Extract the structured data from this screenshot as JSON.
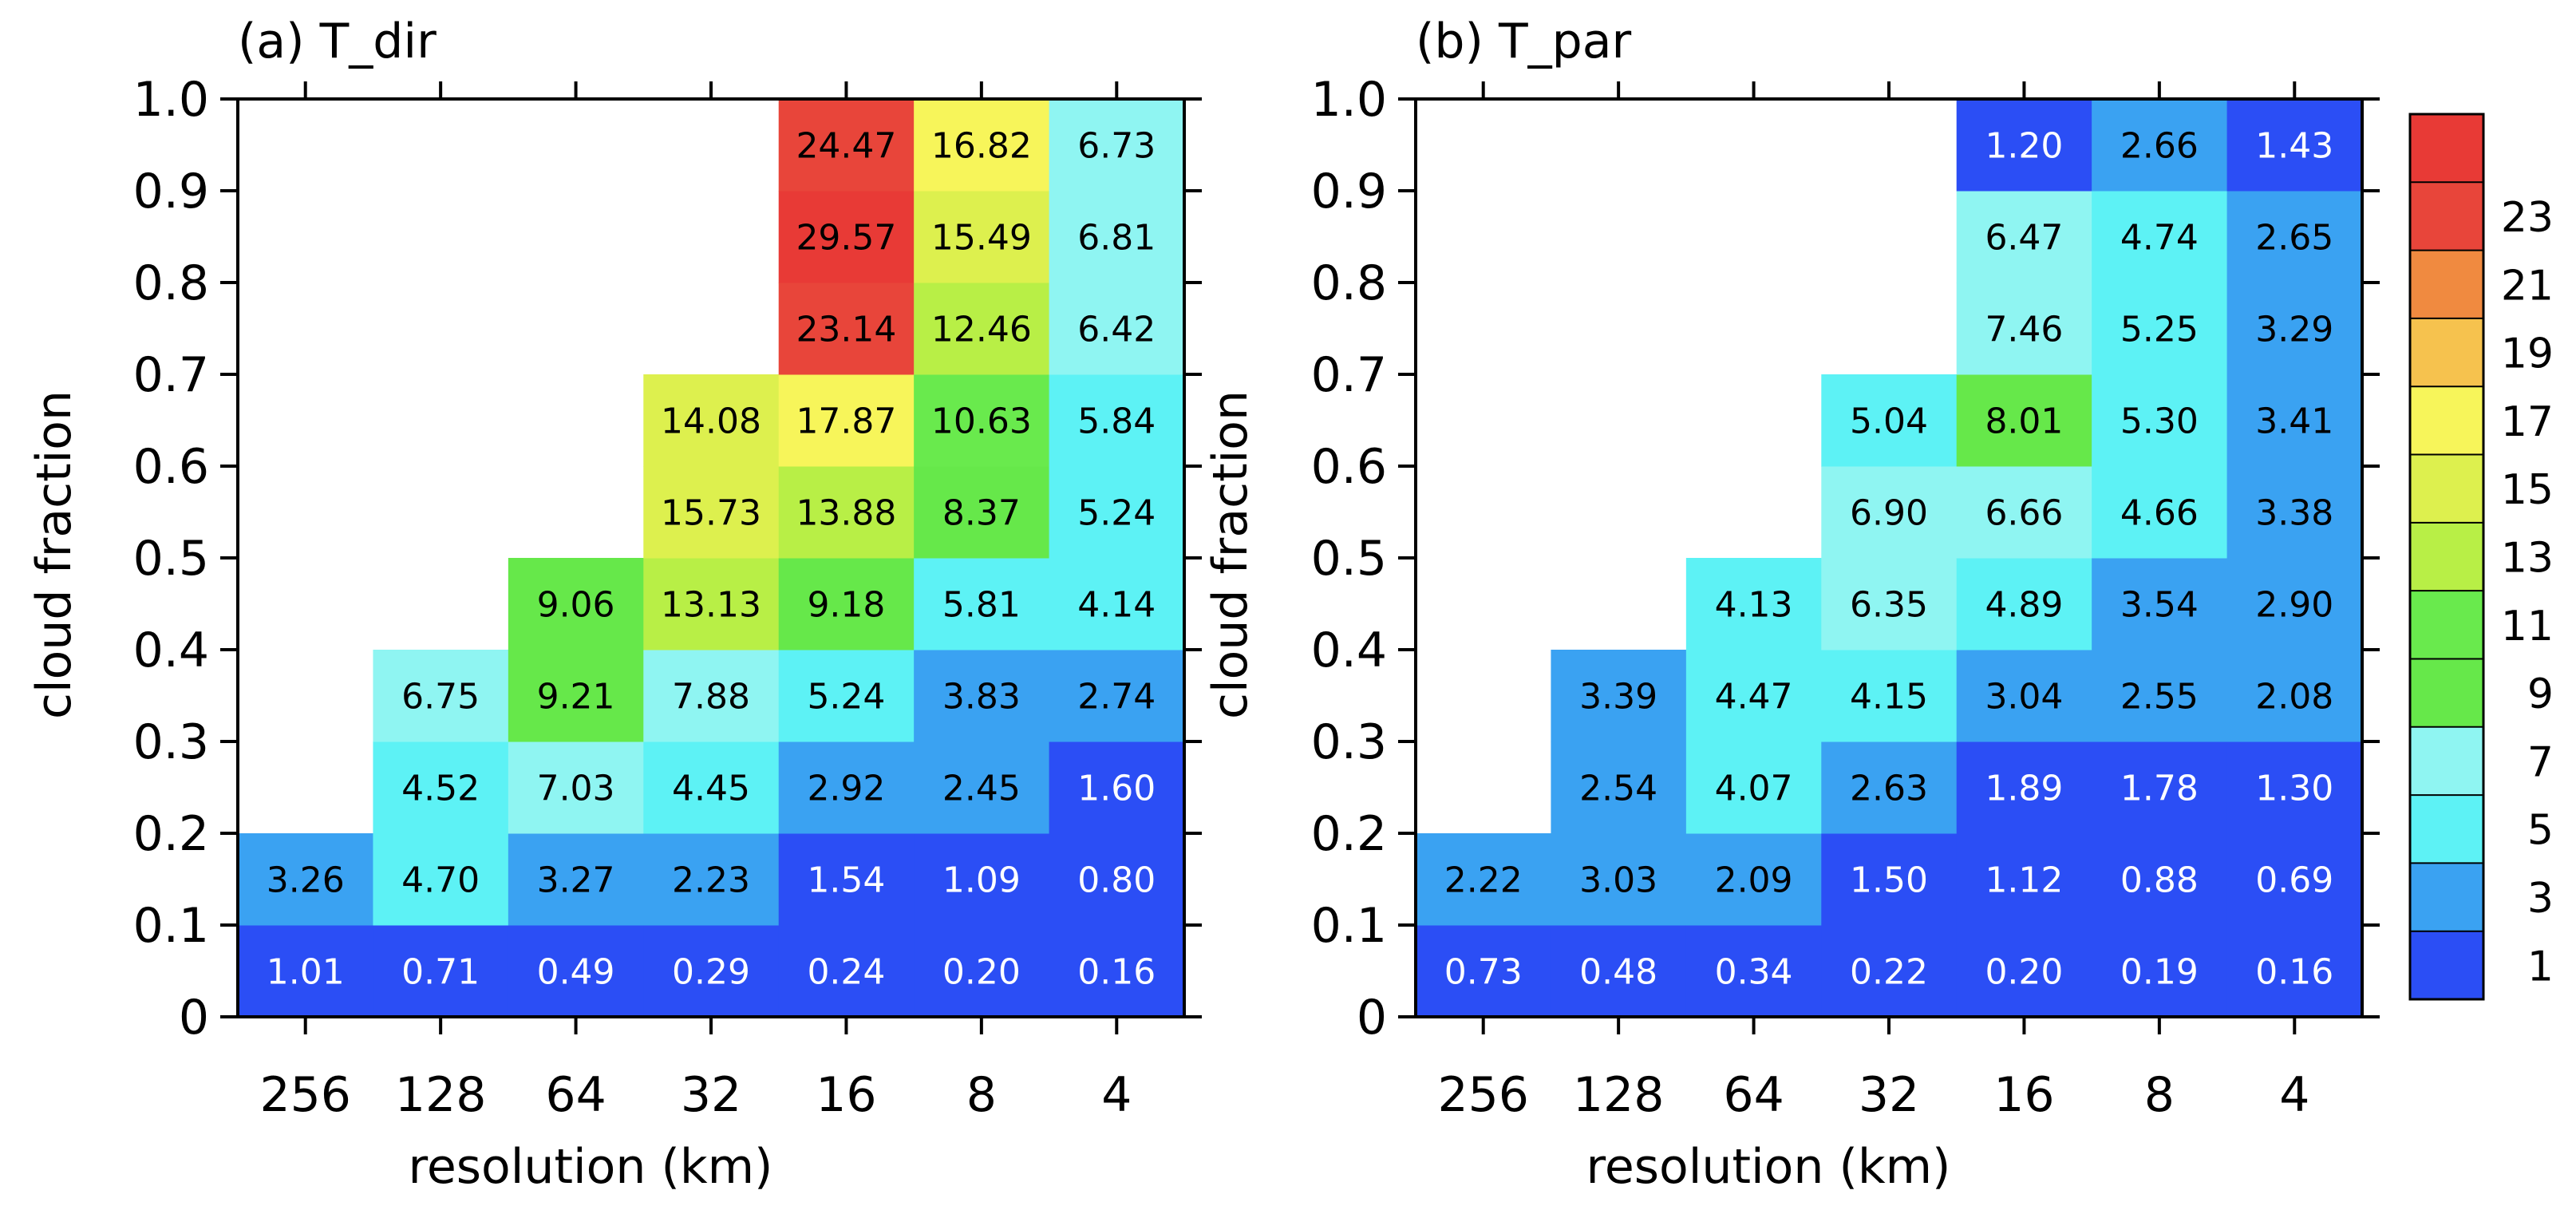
{
  "chart_data": [
    {
      "type": "heatmap",
      "panel": "a",
      "title": "(a) T_dir",
      "xlabel": "resolution (km)",
      "ylabel": "cloud fraction",
      "x_categories": [
        "256",
        "128",
        "64",
        "32",
        "16",
        "8",
        "4"
      ],
      "y_ticks": [
        "0",
        "0.1",
        "0.2",
        "0.3",
        "0.4",
        "0.5",
        "0.6",
        "0.7",
        "0.8",
        "0.9",
        "1.0"
      ],
      "ylim": [
        0,
        1.0
      ],
      "values": [
        [
          "1.01",
          "0.71",
          "0.49",
          "0.29",
          "0.24",
          "0.20",
          "0.16"
        ],
        [
          "3.26",
          "4.70",
          "3.27",
          "2.23",
          "1.54",
          "1.09",
          "0.80"
        ],
        [
          null,
          "4.52",
          "7.03",
          "4.45",
          "2.92",
          "2.45",
          "1.60"
        ],
        [
          null,
          "6.75",
          "9.21",
          "7.88",
          "5.24",
          "3.83",
          "2.74"
        ],
        [
          null,
          null,
          "9.06",
          "13.13",
          "9.18",
          "5.81",
          "4.14"
        ],
        [
          null,
          null,
          null,
          "15.73",
          "13.88",
          "8.37",
          "5.24"
        ],
        [
          null,
          null,
          null,
          "14.08",
          "17.87",
          "10.63",
          "5.84"
        ],
        [
          null,
          null,
          null,
          null,
          "23.14",
          "12.46",
          "6.42"
        ],
        [
          null,
          null,
          null,
          null,
          "29.57",
          "15.49",
          "6.81"
        ],
        [
          null,
          null,
          null,
          null,
          "24.47",
          "16.82",
          "6.73"
        ]
      ]
    },
    {
      "type": "heatmap",
      "panel": "b",
      "title": "(b) T_par",
      "xlabel": "resolution (km)",
      "ylabel": "cloud fraction",
      "x_categories": [
        "256",
        "128",
        "64",
        "32",
        "16",
        "8",
        "4"
      ],
      "y_ticks": [
        "0",
        "0.1",
        "0.2",
        "0.3",
        "0.4",
        "0.5",
        "0.6",
        "0.7",
        "0.8",
        "0.9",
        "1.0"
      ],
      "ylim": [
        0,
        1.0
      ],
      "values": [
        [
          "0.73",
          "0.48",
          "0.34",
          "0.22",
          "0.20",
          "0.19",
          "0.16"
        ],
        [
          "2.22",
          "3.03",
          "2.09",
          "1.50",
          "1.12",
          "0.88",
          "0.69"
        ],
        [
          null,
          "2.54",
          "4.07",
          "2.63",
          "1.89",
          "1.78",
          "1.30"
        ],
        [
          null,
          "3.39",
          "4.47",
          "4.15",
          "3.04",
          "2.55",
          "2.08"
        ],
        [
          null,
          null,
          "4.13",
          "6.35",
          "4.89",
          "3.54",
          "2.90"
        ],
        [
          null,
          null,
          null,
          "6.90",
          "6.66",
          "4.66",
          "3.38"
        ],
        [
          null,
          null,
          null,
          "5.04",
          "8.01",
          "5.30",
          "3.41"
        ],
        [
          null,
          null,
          null,
          null,
          "7.46",
          "5.25",
          "3.29"
        ],
        [
          null,
          null,
          null,
          null,
          "6.47",
          "4.74",
          "2.65"
        ],
        [
          null,
          null,
          null,
          null,
          "1.20",
          "2.66",
          "1.43"
        ]
      ]
    }
  ],
  "colorbar": {
    "labels": [
      "1",
      "3",
      "5",
      "7",
      "9",
      "11",
      "13",
      "15",
      "17",
      "19",
      "21",
      "23"
    ],
    "boundaries": [
      0,
      2,
      4,
      6,
      8,
      10,
      12,
      14,
      16,
      18,
      20,
      22,
      25
    ],
    "colors": [
      "#2b4ef5",
      "#3aa2f2",
      "#5df2f5",
      "#8ff5f2",
      "#66e84a",
      "#69ea4d",
      "#b8ef46",
      "#ddf04e",
      "#f7f55a",
      "#f6c24e",
      "#f08a40",
      "#e8453a",
      "#e83a36"
    ]
  }
}
